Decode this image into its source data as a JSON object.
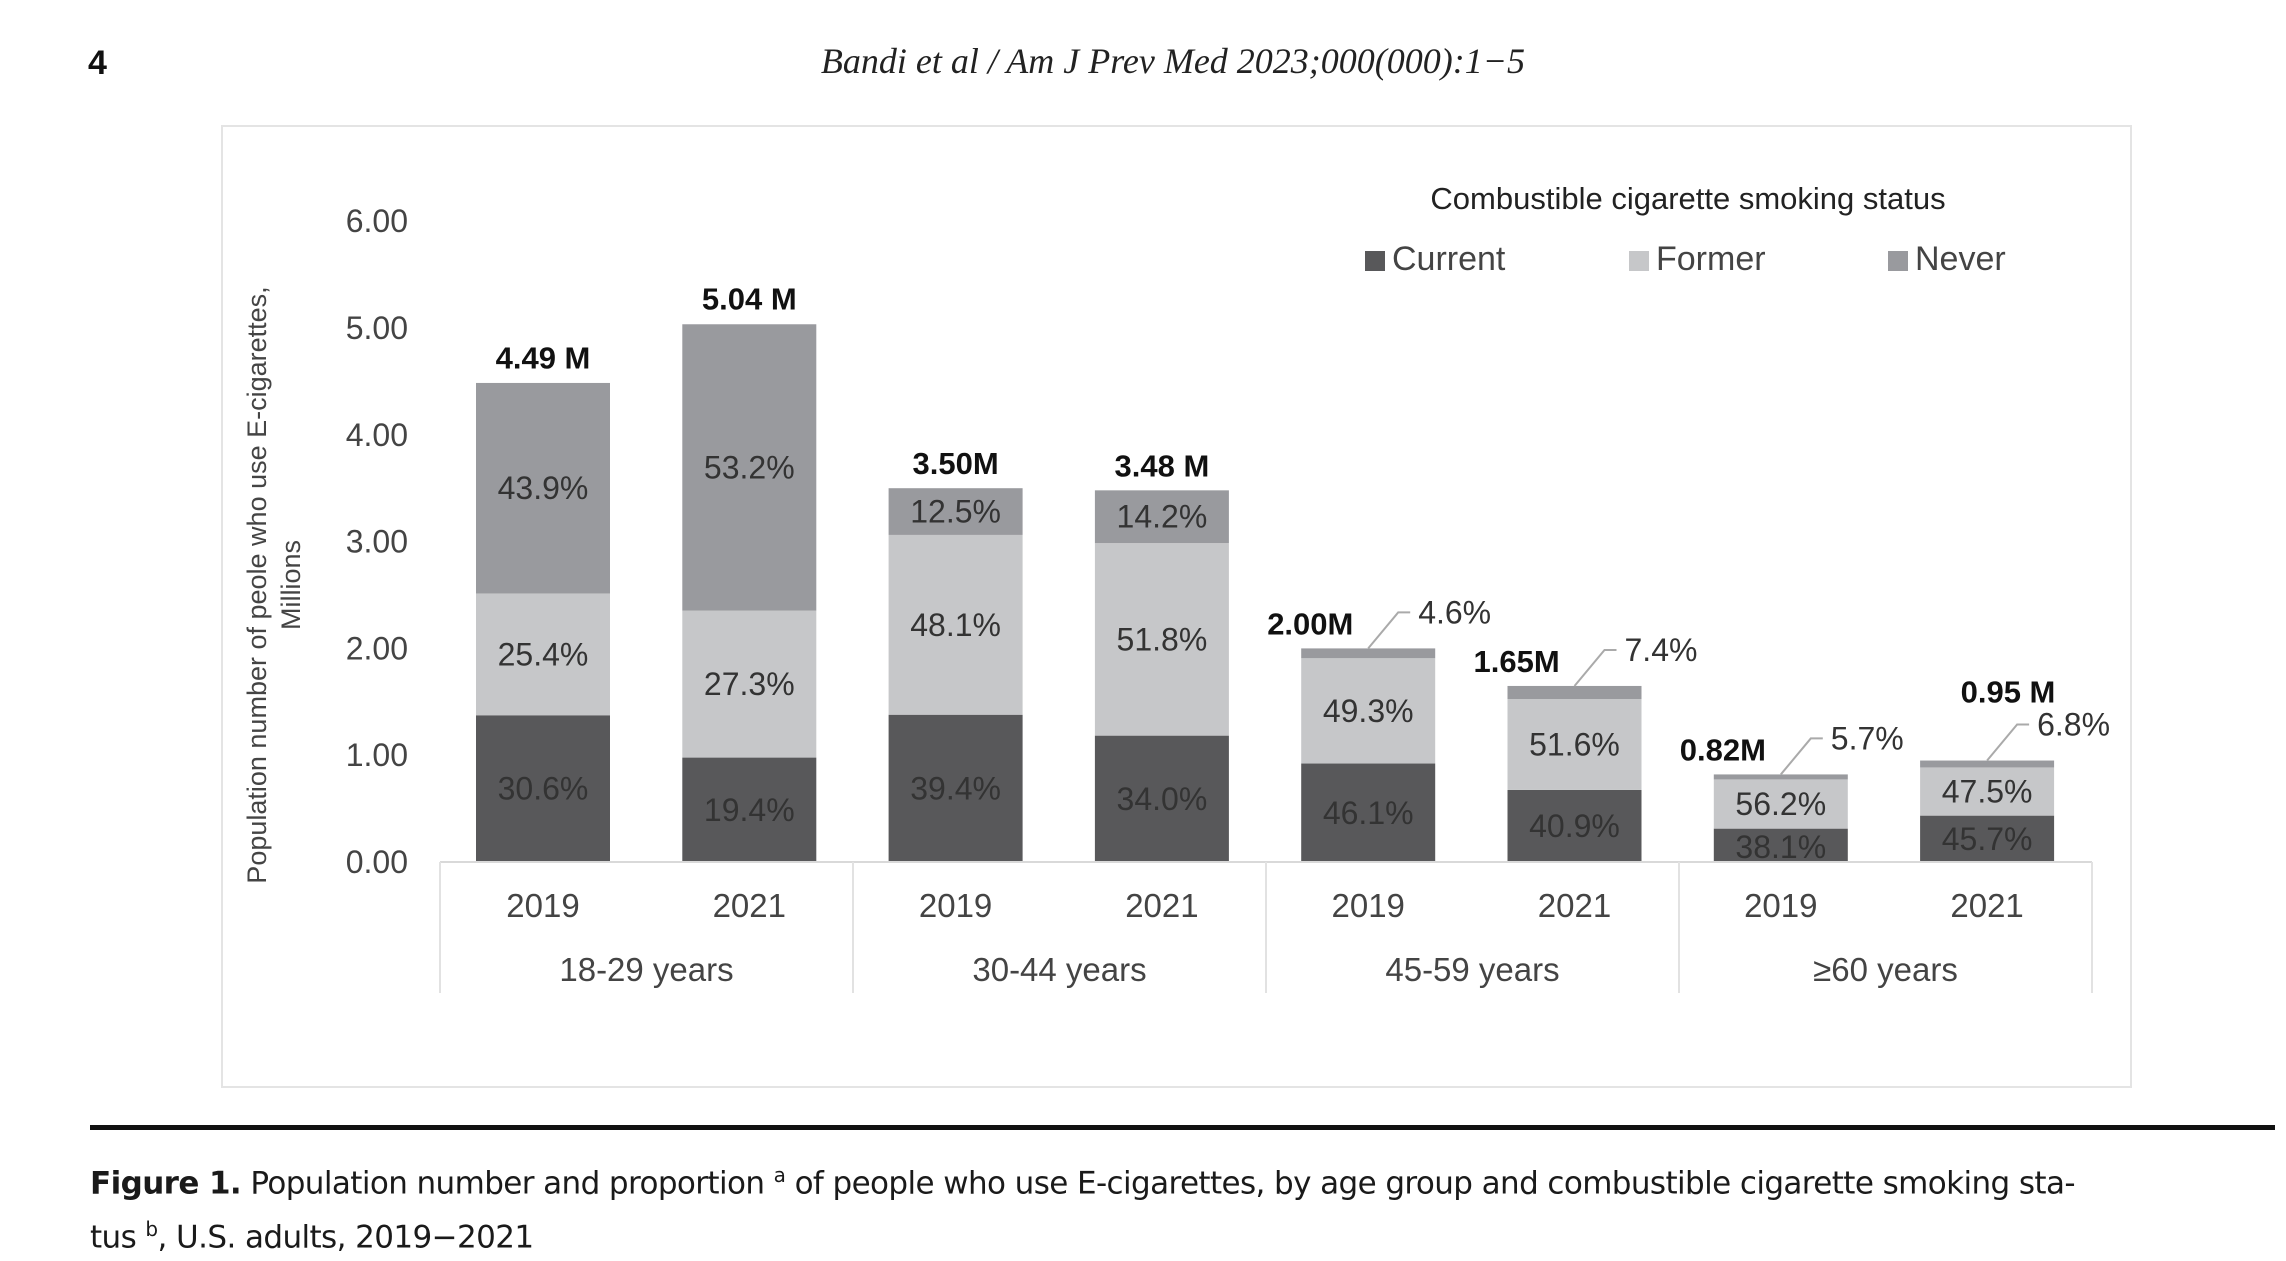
{
  "header": {
    "page_number": "4",
    "running_head": "Bandi et al / Am J Prev Med 2023;000(000):1−5"
  },
  "caption": {
    "figure_label": "Figure 1.",
    "text_part1": " Population number and proportion ",
    "sup_a": "a",
    "text_part2": " of people who use E-cigarettes, by age group and combustible cigarette smoking sta-",
    "text_part3": "tus ",
    "sup_b": "b",
    "text_part4": ", U.S. adults, 2019−2021"
  },
  "chart_data": {
    "type": "bar",
    "stacked": true,
    "title": "",
    "legend_title": "Combustible cigarette smoking status",
    "legend_position": "top-right",
    "ylabel": "Population number of peole who use E-cigarettes,",
    "ylabel_line2": "Millions",
    "xlabel": "",
    "ylim": [
      0,
      6
    ],
    "yticks": [
      "0.00",
      "1.00",
      "2.00",
      "3.00",
      "4.00",
      "5.00",
      "6.00"
    ],
    "ytick_values": [
      0,
      1,
      2,
      3,
      4,
      5,
      6
    ],
    "grid": false,
    "groups": [
      "18-29 years",
      "30-44 years",
      "45-59 years",
      "≥60 years"
    ],
    "categories": [
      "2019",
      "2021",
      "2019",
      "2021",
      "2019",
      "2021",
      "2019",
      "2021"
    ],
    "category_group_index": [
      0,
      0,
      1,
      1,
      2,
      2,
      3,
      3
    ],
    "totals": [
      4.49,
      5.04,
      3.5,
      3.48,
      2.0,
      1.65,
      0.82,
      0.95
    ],
    "total_labels": [
      "4.49 M",
      "5.04 M",
      "3.50M",
      "3.48 M",
      "2.00M",
      "1.65M",
      "0.82M",
      "0.95 M"
    ],
    "series": [
      {
        "name": "Current",
        "color": "#58585a",
        "percent": [
          30.6,
          19.4,
          39.4,
          34.0,
          46.1,
          40.9,
          38.1,
          45.7
        ],
        "labels": [
          "30.6%",
          "19.4%",
          "39.4%",
          "34.0%",
          "46.1%",
          "40.9%",
          "38.1%",
          "45.7%"
        ]
      },
      {
        "name": "Former",
        "color": "#c6c7c9",
        "percent": [
          25.4,
          27.3,
          48.1,
          51.8,
          49.3,
          51.6,
          56.2,
          47.5
        ],
        "labels": [
          "25.4%",
          "27.3%",
          "48.1%",
          "51.8%",
          "49.3%",
          "51.6%",
          "56.2%",
          "47.5%"
        ]
      },
      {
        "name": "Never",
        "color": "#999a9e",
        "percent": [
          43.9,
          53.2,
          12.5,
          14.2,
          4.6,
          7.4,
          5.7,
          6.8
        ],
        "labels": [
          "43.9%",
          "53.2%",
          "12.5%",
          "14.2%",
          "4.6%",
          "7.4%",
          "5.7%",
          "6.8%"
        ],
        "label_outside_with_leader": [
          false,
          false,
          false,
          false,
          true,
          true,
          true,
          true
        ]
      }
    ]
  }
}
